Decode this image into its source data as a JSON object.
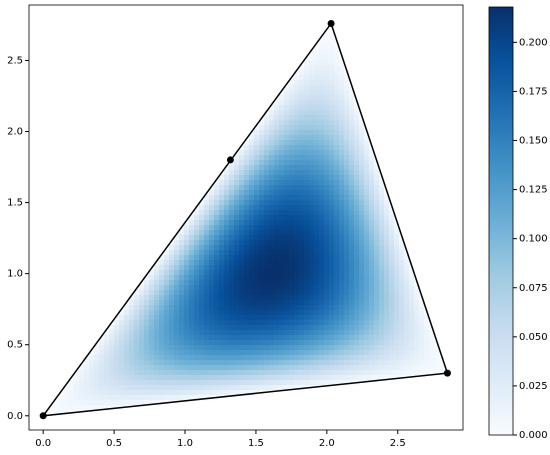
{
  "chart_data": {
    "type": "heatmap",
    "colormap": "Blues",
    "xlim": [
      -0.1,
      2.96
    ],
    "ylim": [
      -0.1,
      2.89
    ],
    "xticks": [
      {
        "value": 0,
        "label": "0.0"
      },
      0.5,
      {
        "value": 1,
        "label": "1.0"
      },
      1.5,
      {
        "value": 2,
        "label": "2.0"
      },
      2.5
    ],
    "yticks": [
      {
        "value": 0,
        "label": "0.0"
      },
      0.5,
      {
        "value": 1,
        "label": "1.0"
      },
      1.5,
      {
        "value": 2,
        "label": "2.0"
      },
      2.5
    ],
    "triangle": {
      "x": [
        0,
        2.03,
        2.85
      ],
      "y": [
        0,
        2.76,
        0.3
      ]
    },
    "points": {
      "x": [
        0,
        1.32,
        2.03,
        2.85
      ],
      "y": [
        0,
        1.8,
        2.76,
        0.3
      ]
    },
    "clim": [
      0,
      0.218
    ],
    "colorbar_ticks": [
      {
        "value": 0,
        "label": "0.000"
      },
      0.025,
      {
        "value": 0.05,
        "label": "0.050"
      },
      0.075,
      {
        "value": 0.1,
        "label": "0.100"
      },
      0.125,
      {
        "value": 0.15,
        "label": "0.150"
      },
      0.175,
      {
        "value": 0.2,
        "label": "0.200"
      }
    ]
  }
}
